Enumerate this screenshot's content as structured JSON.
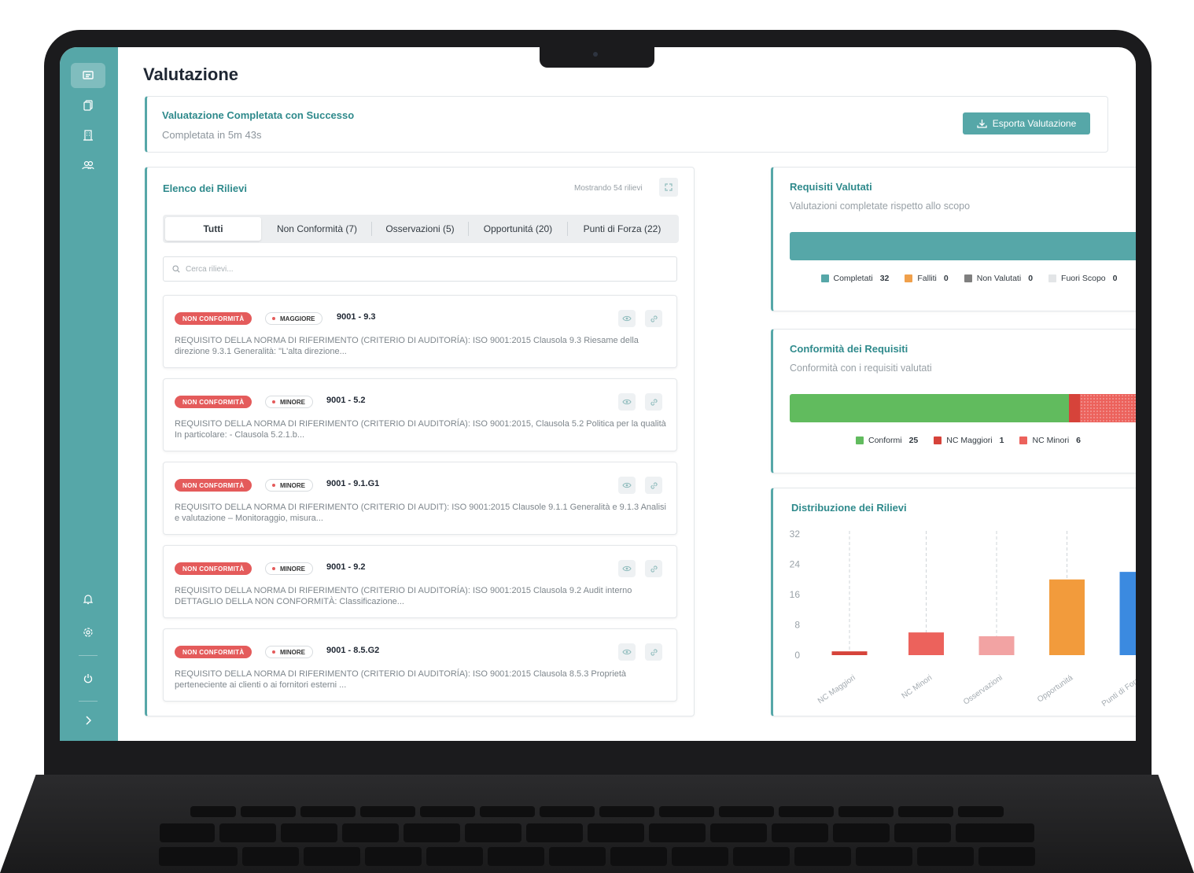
{
  "sidebar": {
    "icons": [
      "assessment-icon",
      "documents-icon",
      "building-icon",
      "users-icon",
      "notifications-icon",
      "settings-icon",
      "power-icon",
      "chevron-right-icon"
    ]
  },
  "page": {
    "title": "Valutazione"
  },
  "banner": {
    "title": "Valuatazione Completata con Successo",
    "subtitle": "Completata in 5m 43s",
    "export_label": "Esporta Valutazione"
  },
  "findings": {
    "title": "Elenco dei Rilievi",
    "count_text": "Mostrando 54 rilievi",
    "tabs": [
      {
        "label": "Tutti"
      },
      {
        "label": "Non Conformità (7)"
      },
      {
        "label": "Osservazioni (5)"
      },
      {
        "label": "Opportunitá (20)"
      },
      {
        "label": "Punti di Forza (22)"
      }
    ],
    "search_placeholder": "Cerca rilievi...",
    "items": [
      {
        "type": "NON CONFORMITÀ",
        "severity": "MAGGIORE",
        "ref": "9001 - 9.3",
        "description": "REQUISITO DELLA NORMA DI RIFERIMENTO (CRITERIO DI AUDITORÍA): ISO 9001:2015 Clausola 9.3 Riesame della direzione 9.3.1 Generalità: \"L'alta direzione..."
      },
      {
        "type": "NON CONFORMITÀ",
        "severity": "MINORE",
        "ref": "9001 - 5.2",
        "description": "REQUISITO DELLA NORMA DI RIFERIMENTO (CRITERIO DI AUDITORÍA): ISO 9001:2015, Clausola 5.2 Politica per la qualità In particolare: - Clausola 5.2.1.b..."
      },
      {
        "type": "NON CONFORMITÀ",
        "severity": "MINORE",
        "ref": "9001 - 9.1.G1",
        "description": "REQUISITO DELLA NORMA DI RIFERIMENTO (CRITERIO DI AUDIT): ISO 9001:2015 Clausole 9.1.1 Generalità e 9.1.3 Analisi e valutazione – Monitoraggio, misura..."
      },
      {
        "type": "NON CONFORMITÀ",
        "severity": "MINORE",
        "ref": "9001 - 9.2",
        "description": "REQUISITO DELLA NORMA DI RIFERIMENTO (CRITERIO DI AUDITORÍA): ISO 9001:2015 Clausola 9.2 Audit interno DETTAGLIO DELLA NON CONFORMITÀ: Classificazione..."
      },
      {
        "type": "NON CONFORMITÀ",
        "severity": "MINORE",
        "ref": "9001 - 8.5.G2",
        "description": "REQUISITO DELLA NORMA DI RIFERIMENTO (CRITERIO DI AUDITORÍA): ISO 9001:2015 Clausola 8.5.3 Proprietà perteneciente ai clienti o ai fornitori esterni ..."
      }
    ]
  },
  "requirements": {
    "title": "Requisiti Valutati",
    "subtitle": "Valutazioni completate rispetto allo scopo",
    "segments": [
      {
        "label": "Completati",
        "value": 32,
        "color": "#56a7a8"
      },
      {
        "label": "Falliti",
        "value": 0,
        "color": "#f0a04b"
      },
      {
        "label": "Non Valutati",
        "value": 0,
        "color": "#7f7f7f"
      },
      {
        "label": "Fuori Scopo",
        "value": 0,
        "color": "#e3e5e7"
      }
    ]
  },
  "conformity": {
    "title": "Conformità dei Requisiti",
    "subtitle": "Conformità con i requisiti valutati",
    "segments": [
      {
        "label": "Conformi",
        "value": 25,
        "color": "#61bb5e"
      },
      {
        "label": "NC Maggiori",
        "value": 1,
        "color": "#d6433a"
      },
      {
        "label": "NC Minori",
        "value": 6,
        "color": "#ec625c"
      }
    ]
  },
  "chart_data": {
    "type": "bar",
    "title": "Distribuzione dei Rilievi",
    "categories": [
      "NC Maggiori",
      "NC Minori",
      "Osservazioni",
      "Opportunitá",
      "Punti di Forza"
    ],
    "values": [
      1,
      6,
      5,
      20,
      22
    ],
    "colors": [
      "#d6433a",
      "#ec625c",
      "#f2a3a3",
      "#f29b3c",
      "#3b8ae0"
    ],
    "yticks": [
      0,
      8,
      16,
      24,
      32
    ],
    "ylim": [
      0,
      32
    ],
    "grid": "vertical dashed per category"
  }
}
